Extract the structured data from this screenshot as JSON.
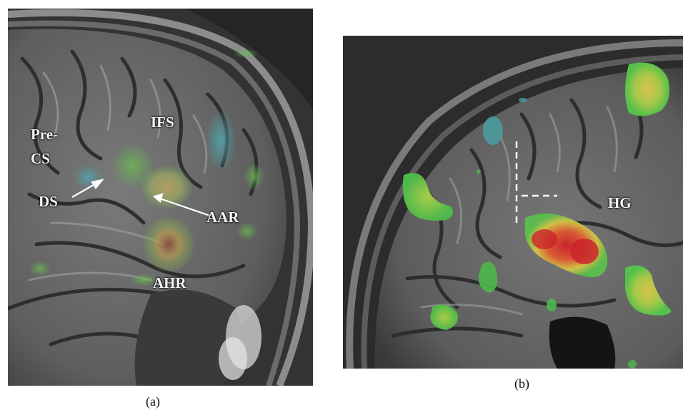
{
  "panel_a": {
    "labels": {
      "precs_line1": "Pre-",
      "precs_line2": "CS",
      "ifs": "IFS",
      "ds": "DS",
      "aar": "AAR",
      "ahr": "AHR"
    },
    "caption": "(a)"
  },
  "panel_b": {
    "labels": {
      "hg": "HG"
    },
    "caption": "(b)"
  },
  "colors": {
    "activation_red": "#d62a2a",
    "activation_yellow": "#d9c347",
    "activation_green": "#5ac24a",
    "deactivation_cyan": "#4a9fa3",
    "background": "#ffffff"
  }
}
